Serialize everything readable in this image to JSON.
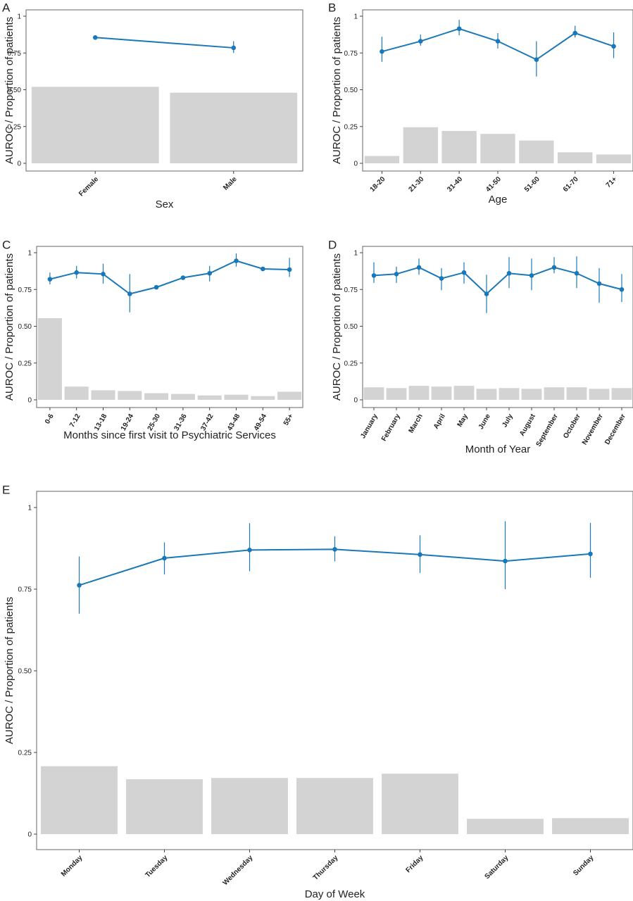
{
  "chart_data": [
    {
      "panel": "A",
      "type": "line+bar",
      "xlabel": "Sex",
      "ylabel": "AUROC / Proportion of patients",
      "ylim": [
        0,
        1
      ],
      "yticks": [
        "0",
        "0.25",
        "0.50",
        "0.75",
        "1"
      ],
      "categories": [
        "Female",
        "Male"
      ],
      "auroc": [
        0.855,
        0.785
      ],
      "auroc_lower": [
        0.84,
        0.75
      ],
      "auroc_upper": [
        0.87,
        0.83
      ],
      "proportion": [
        0.52,
        0.48
      ]
    },
    {
      "panel": "B",
      "type": "line+bar",
      "xlabel": "Age",
      "ylabel": "AUROC / Proportion of patients",
      "ylim": [
        0,
        1
      ],
      "yticks": [
        "0",
        "0.25",
        "0.50",
        "0.75",
        "1"
      ],
      "categories": [
        "18-20",
        "21-30",
        "31-40",
        "41-50",
        "51-60",
        "61-70",
        "71+"
      ],
      "auroc": [
        0.76,
        0.83,
        0.915,
        0.83,
        0.705,
        0.885,
        0.795
      ],
      "auroc_lower": [
        0.69,
        0.8,
        0.87,
        0.78,
        0.59,
        0.855,
        0.715
      ],
      "auroc_upper": [
        0.86,
        0.875,
        0.975,
        0.885,
        0.83,
        0.935,
        0.89
      ],
      "proportion": [
        0.05,
        0.245,
        0.22,
        0.2,
        0.155,
        0.075,
        0.06
      ]
    },
    {
      "panel": "C",
      "type": "line+bar",
      "xlabel": "Months since first visit to Psychiatric Services",
      "ylabel": "AUROC / Proportion of patients",
      "ylim": [
        0,
        1
      ],
      "yticks": [
        "0",
        "0.25",
        "0.50",
        "0.75",
        "1"
      ],
      "categories": [
        "0-6",
        "7-12",
        "13-18",
        "19-24",
        "25-30",
        "31-36",
        "37-42",
        "43-48",
        "49-54",
        "55+"
      ],
      "auroc": [
        0.82,
        0.865,
        0.855,
        0.72,
        0.765,
        0.83,
        0.86,
        0.945,
        0.89,
        0.885
      ],
      "auroc_lower": [
        0.785,
        0.825,
        0.79,
        0.595,
        null,
        null,
        0.805,
        0.905,
        null,
        0.835
      ],
      "auroc_upper": [
        0.865,
        0.91,
        0.925,
        0.855,
        null,
        null,
        0.91,
        0.995,
        null,
        0.965
      ],
      "proportion": [
        0.555,
        0.09,
        0.065,
        0.06,
        0.045,
        0.04,
        0.03,
        0.035,
        0.025,
        0.055
      ]
    },
    {
      "panel": "D",
      "type": "line+bar",
      "xlabel": "Month of Year",
      "ylabel": "AUROC / Proportion of patients",
      "ylim": [
        0,
        1
      ],
      "yticks": [
        "0",
        "0.25",
        "0.50",
        "0.75",
        "1"
      ],
      "categories": [
        "January",
        "February",
        "March",
        "April",
        "May",
        "June",
        "July",
        "August",
        "September",
        "October",
        "November",
        "December"
      ],
      "auroc": [
        0.845,
        0.855,
        0.9,
        0.825,
        0.865,
        0.72,
        0.86,
        0.845,
        0.9,
        0.86,
        0.79,
        0.75
      ],
      "auroc_lower": [
        0.795,
        0.795,
        0.85,
        0.745,
        0.79,
        0.59,
        0.76,
        0.745,
        0.86,
        0.76,
        0.66,
        0.665
      ],
      "auroc_upper": [
        0.935,
        0.905,
        0.96,
        0.895,
        0.935,
        0.85,
        0.97,
        0.96,
        0.97,
        0.975,
        0.895,
        0.855
      ],
      "proportion": [
        0.085,
        0.08,
        0.095,
        0.09,
        0.095,
        0.075,
        0.08,
        0.075,
        0.085,
        0.085,
        0.075,
        0.08
      ]
    },
    {
      "panel": "E",
      "type": "line+bar",
      "xlabel": "Day of Week",
      "ylabel": "AUROC / Proportion of patients",
      "ylim": [
        0,
        1
      ],
      "yticks": [
        "0",
        "0.25",
        "0.50",
        "0.75",
        "1"
      ],
      "categories": [
        "Monday",
        "Tuesday",
        "Wednesday",
        "Thursday",
        "Friday",
        "Saturday",
        "Sunday"
      ],
      "auroc": [
        0.762,
        0.845,
        0.87,
        0.872,
        0.856,
        0.836,
        0.858
      ],
      "auroc_lower": [
        0.675,
        0.795,
        0.805,
        0.835,
        0.8,
        0.75,
        0.785
      ],
      "auroc_upper": [
        0.85,
        0.893,
        0.952,
        0.912,
        0.915,
        0.958,
        0.953
      ],
      "proportion": [
        0.208,
        0.168,
        0.172,
        0.172,
        0.185,
        0.047,
        0.049
      ]
    }
  ],
  "colors": {
    "line": "#1a78b8",
    "bar": "#d3d3d3",
    "frame": "#666666"
  }
}
